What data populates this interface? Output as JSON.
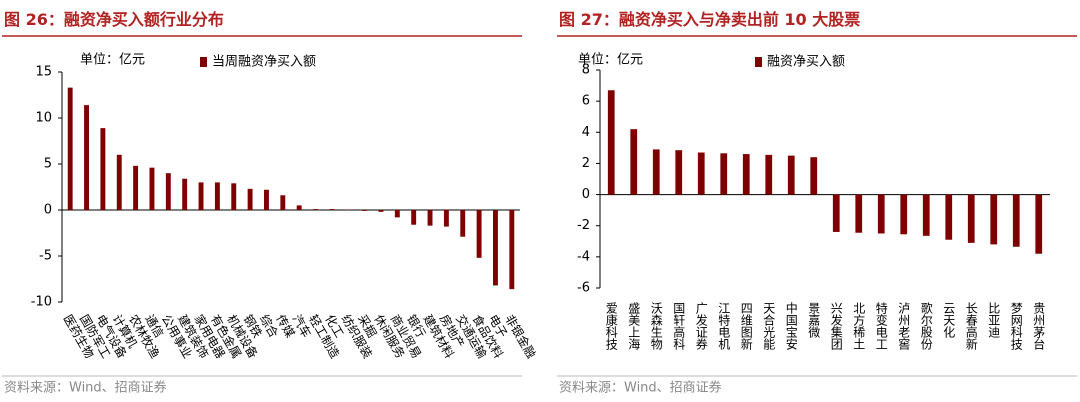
{
  "chart_data": [
    {
      "type": "bar",
      "title": "图 26：融资净买入额行业分布",
      "unit_label": "单位：亿元",
      "source": "资料来源：Wind、招商证券",
      "categories": [
        "医药生物",
        "国防军工",
        "电气设备",
        "计算机",
        "农林牧渔",
        "通信",
        "公用事业",
        "建筑装饰",
        "家用电器",
        "有色金属",
        "机械设备",
        "钢铁",
        "综合",
        "传媒",
        "汽车",
        "轻工制造",
        "化工",
        "纺织服装",
        "采掘",
        "休闲服务",
        "商业贸易",
        "银行",
        "建筑材料",
        "房地产",
        "交通运输",
        "食品饮料",
        "电子",
        "非银金融"
      ],
      "series": [
        {
          "name": "当周融资净买入额",
          "color": "#7f0000",
          "values": [
            13.3,
            11.4,
            8.9,
            6.0,
            4.8,
            4.6,
            4.0,
            3.4,
            3.0,
            3.0,
            2.9,
            2.3,
            2.2,
            1.6,
            0.5,
            0.1,
            0.1,
            0.05,
            -0.1,
            -0.2,
            -0.8,
            -1.6,
            -1.7,
            -1.8,
            -2.9,
            -5.2,
            -8.2,
            -8.6
          ]
        }
      ],
      "ylim": [
        -10,
        15
      ],
      "yticks": [
        -10,
        -5,
        0,
        5,
        10,
        15
      ]
    },
    {
      "type": "bar",
      "title": "图 27：融资净买入与净卖出前 10 大股票",
      "unit_label": "单位：亿元",
      "source": "资料来源：Wind、招商证券",
      "categories": [
        "爱康科技",
        "盛美上海",
        "沃森生物",
        "国轩高科",
        "广发证券",
        "江特电机",
        "四维图新",
        "天合光能",
        "中国宝安",
        "景嘉微",
        "兴发集团",
        "北方稀土",
        "特变电工",
        "泸州老窖",
        "歌尔股份",
        "云天化",
        "长春高新",
        "比亚迪",
        "梦网科技",
        "贵州茅台"
      ],
      "series": [
        {
          "name": "融资净买入额",
          "color": "#7f0000",
          "values": [
            6.7,
            4.2,
            2.9,
            2.85,
            2.7,
            2.65,
            2.6,
            2.55,
            2.5,
            2.4,
            -2.4,
            -2.45,
            -2.5,
            -2.55,
            -2.65,
            -2.9,
            -3.1,
            -3.2,
            -3.35,
            -3.8
          ]
        }
      ],
      "ylim": [
        -6,
        8
      ],
      "yticks": [
        -6,
        -4,
        -2,
        0,
        2,
        4,
        6,
        8
      ]
    }
  ]
}
